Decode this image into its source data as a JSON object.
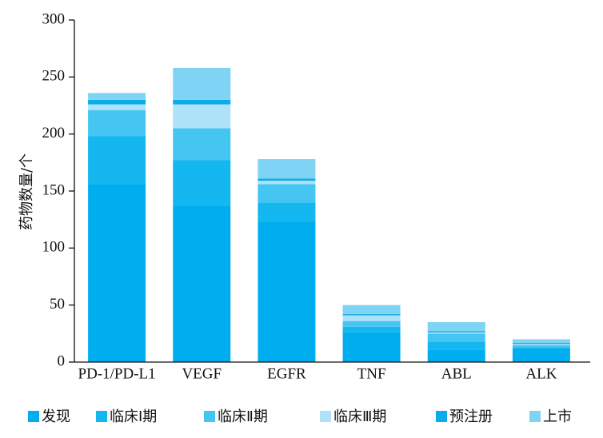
{
  "chart_data": {
    "type": "stacked_bar",
    "y_label": "药物数量/个",
    "categories": [
      "PD-1/PD-L1",
      "VEGF",
      "EGFR",
      "TNF",
      "ABL",
      "ALK"
    ],
    "series": [
      {
        "name": "发现",
        "color": "#00aeef",
        "values": [
          156,
          137,
          123,
          26,
          11,
          12
        ]
      },
      {
        "name": "临床Ⅰ期",
        "color": "#14b7f0",
        "values": [
          42,
          40,
          17,
          5,
          7,
          1
        ]
      },
      {
        "name": "临床Ⅱ期",
        "color": "#45c6f2",
        "values": [
          23,
          28,
          16,
          5,
          7,
          2
        ]
      },
      {
        "name": "临床Ⅲ期",
        "color": "#ade2f9",
        "values": [
          5,
          21,
          3,
          5,
          1,
          1
        ]
      },
      {
        "name": "预注册",
        "color": "#0aacea",
        "values": [
          4,
          4,
          2,
          1,
          1,
          1
        ]
      },
      {
        "name": "上市",
        "color": "#7fd4f6",
        "values": [
          6,
          28,
          17,
          8,
          8,
          3
        ]
      }
    ],
    "ylim": [
      0,
      300
    ],
    "yticks": [
      0,
      50,
      100,
      150,
      200,
      250,
      300
    ],
    "grid": false,
    "legend": "bottom"
  }
}
